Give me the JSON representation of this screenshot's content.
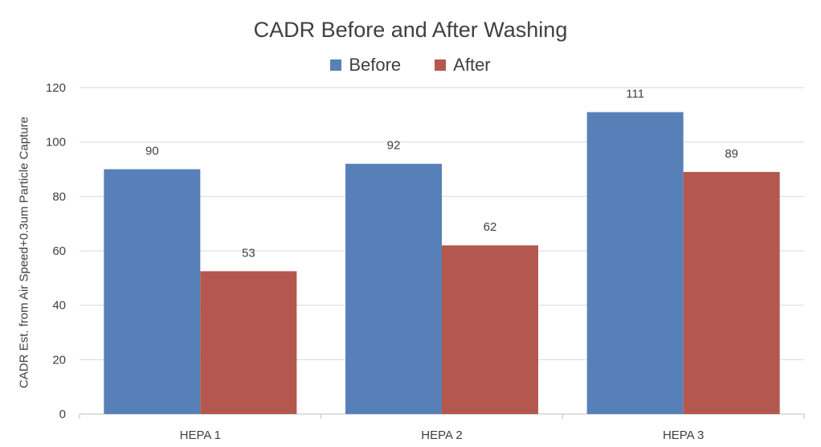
{
  "chart_data": {
    "type": "bar",
    "title": "CADR Before and After Washing",
    "xlabel": "",
    "ylabel": "CADR Est. from Air Speed+0.3um Particle Capture",
    "categories": [
      "HEPA 1",
      "HEPA 2",
      "HEPA 3"
    ],
    "series": [
      {
        "name": "Before",
        "values": [
          90,
          92,
          111
        ],
        "labels": [
          "90",
          "92",
          "111"
        ],
        "color": "#5880b8"
      },
      {
        "name": "After",
        "values": [
          52.5,
          62,
          89
        ],
        "labels": [
          "53",
          "62",
          "89"
        ],
        "color": "#b3574f"
      }
    ],
    "ylim": [
      0,
      120
    ],
    "yticks": [
      0,
      20,
      40,
      60,
      80,
      100,
      120
    ],
    "grid": true,
    "legend_position": "top-center",
    "gridline_color": "#d9d9d9",
    "axis_line_color": "#bfbfbf"
  }
}
